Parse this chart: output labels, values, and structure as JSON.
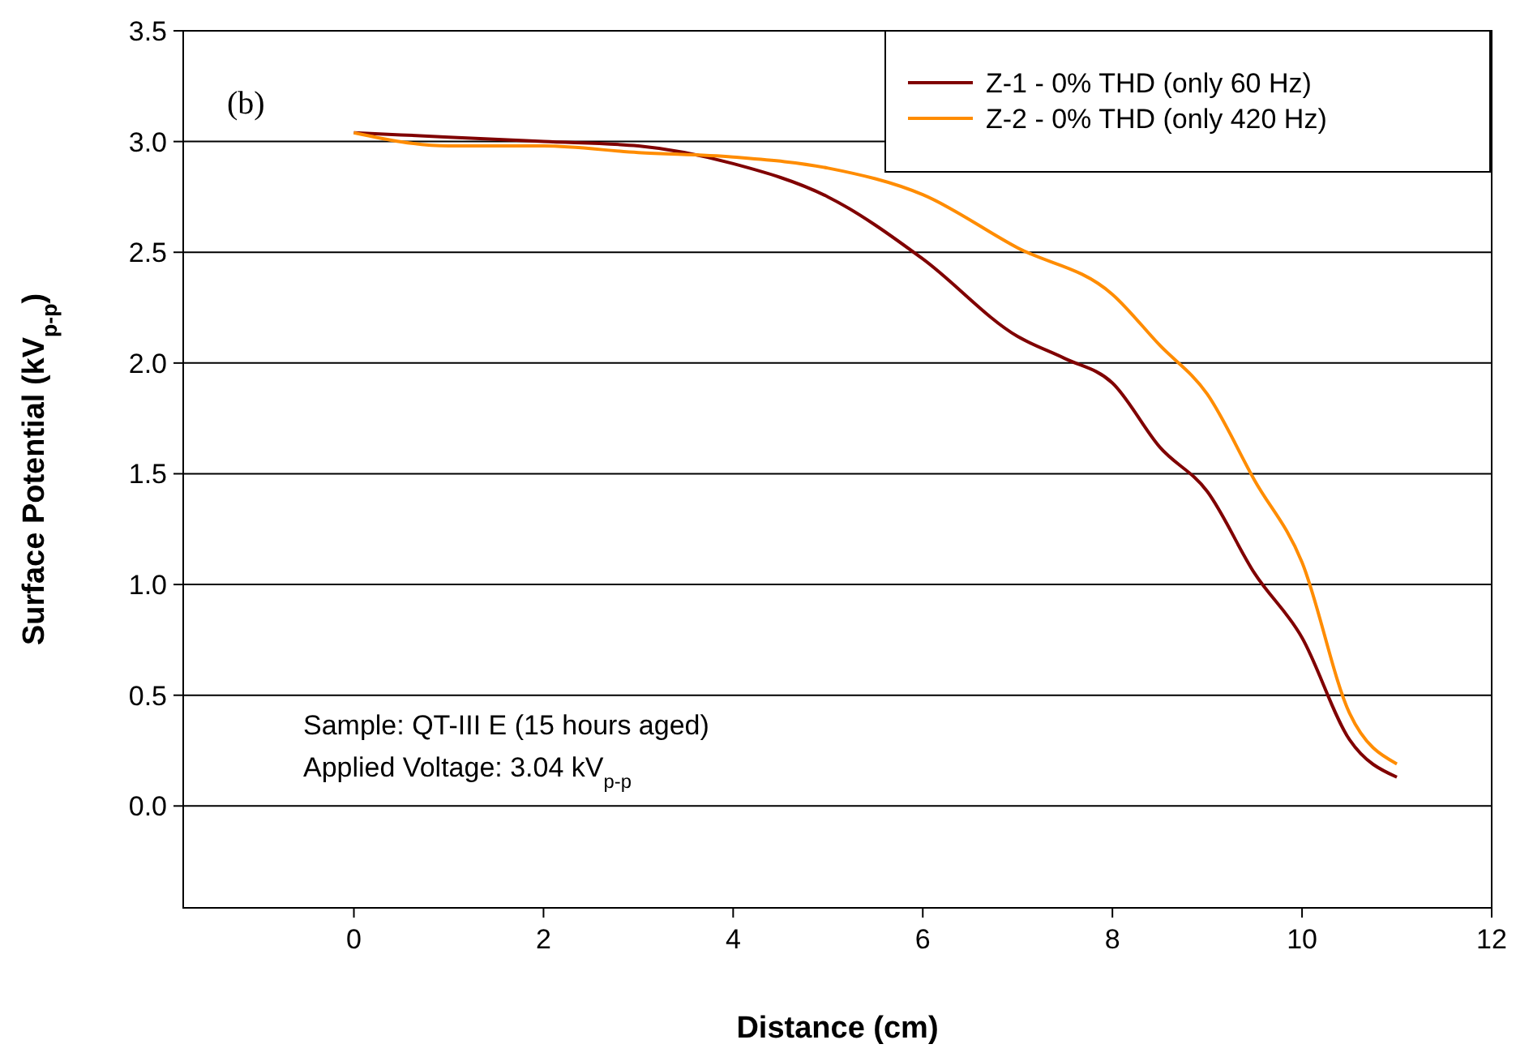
{
  "chart_data": {
    "type": "line",
    "xlabel": "Distance (cm)",
    "ylabel": "Surface Potential (kV$_{p-p}$)",
    "xlim": [
      -1.8,
      12
    ],
    "xticks": [
      0,
      2,
      4,
      6,
      8,
      10,
      12
    ],
    "ylim": [
      -0.46,
      3.5
    ],
    "yticks": [
      {
        "value": 0,
        "label": "0.0"
      },
      {
        "value": 0.5,
        "label": "0.5"
      },
      {
        "value": 1,
        "label": "1.0"
      },
      {
        "value": 1.5,
        "label": "1.5"
      },
      {
        "value": 2,
        "label": "2.0"
      },
      {
        "value": 2.5,
        "label": "2.5"
      },
      {
        "value": 3,
        "label": "3.0"
      },
      {
        "value": 3.5,
        "label": "3.5"
      }
    ],
    "grid": "y",
    "legend": "top right",
    "marker": "none",
    "line_style": "solid",
    "annotations": [
      "(b)",
      "Sample: QT-III E (15 hours aged)",
      "Applied Voltage: 3.04 kV$_{p-p}$"
    ],
    "series": [
      {
        "name": "Z-1 - 0% THD (only 60 Hz)",
        "color": "#800000",
        "x": [
          0,
          1,
          2,
          3,
          4,
          5,
          6,
          7,
          7.5,
          8,
          8.5,
          9,
          9.5,
          10,
          10.5,
          11
        ],
        "values": [
          3.04,
          3.02,
          3.0,
          2.98,
          2.9,
          2.75,
          2.47,
          2.12,
          2.02,
          1.91,
          1.62,
          1.42,
          1.05,
          0.76,
          0.3,
          0.13
        ]
      },
      {
        "name": "Z-2 - 0% THD (only 420 Hz)",
        "color": "#ff8c00",
        "x": [
          0,
          1,
          2,
          3,
          4,
          5,
          6,
          7,
          8,
          8.5,
          9,
          9.5,
          10,
          10.5,
          11
        ],
        "values": [
          3.04,
          2.98,
          2.98,
          2.95,
          2.93,
          2.88,
          2.76,
          2.52,
          2.31,
          2.08,
          1.86,
          1.47,
          1.1,
          0.42,
          0.19
        ]
      }
    ]
  }
}
